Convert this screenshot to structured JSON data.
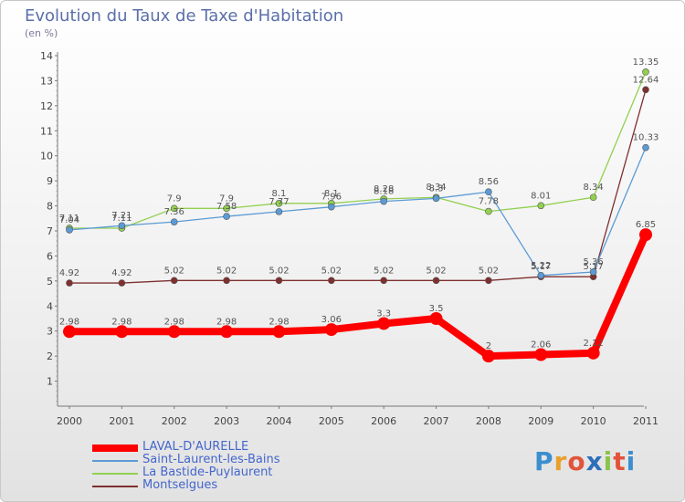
{
  "title": "Evolution du Taux de Taxe d'Habitation",
  "unit": "(en %)",
  "brand": {
    "text": "Proxiti",
    "letter_colors": [
      "#3b8fd0",
      "#e8a02c",
      "#e2543a",
      "#2d6fb8",
      "#8bc34a",
      "#e2543a",
      "#3b8fd0"
    ]
  },
  "chart_data": {
    "type": "line",
    "x": [
      "2000",
      "2001",
      "2002",
      "2003",
      "2004",
      "2005",
      "2006",
      "2007",
      "2008",
      "2009",
      "2010",
      "2011"
    ],
    "ylim": [
      0,
      14
    ],
    "yticks": [
      1,
      2,
      3,
      4,
      5,
      6,
      7,
      8,
      9,
      10,
      11,
      12,
      13,
      14
    ],
    "grid": false,
    "legend": "bottom-left",
    "series": [
      {
        "name": "LAVAL-D'AURELLE",
        "color": "#ff0000",
        "values": [
          2.98,
          2.98,
          2.98,
          2.98,
          2.98,
          3.06,
          3.3,
          3.5,
          2,
          2.06,
          2.12,
          6.85
        ],
        "labels": [
          "2.98",
          "2.98",
          "2.98",
          "2.98",
          "2.98",
          "3.06",
          "3.3",
          "3.5",
          "2",
          "2.06",
          "2.12",
          "6.85"
        ]
      },
      {
        "name": "Saint-Laurent-les-Bains",
        "color": "#5b9bd5",
        "values": [
          7.04,
          7.21,
          7.36,
          7.58,
          7.77,
          7.96,
          8.18,
          8.3,
          8.56,
          5.22,
          5.36,
          10.33
        ],
        "labels": [
          "7.04",
          "7.21",
          "7.36",
          "7.58",
          "7.77",
          "7.96",
          "8.18",
          "8.3",
          "8.56",
          "5.22",
          "5.36",
          "10.33"
        ]
      },
      {
        "name": "La Bastide-Puylaurent",
        "color": "#92d050",
        "values": [
          7.11,
          7.11,
          7.9,
          7.9,
          8.1,
          8.1,
          8.28,
          8.34,
          7.78,
          8.01,
          8.34,
          13.35
        ],
        "labels": [
          "7.11",
          "7.11",
          "7.9",
          "7.9",
          "8.1",
          "8.1",
          "8.28",
          "8.34",
          "7.78",
          "8.01",
          "8.34",
          "13.35"
        ]
      },
      {
        "name": "Montselgues",
        "color": "#7f2f2f",
        "values": [
          4.92,
          4.92,
          5.02,
          5.02,
          5.02,
          5.02,
          5.02,
          5.02,
          5.02,
          5.17,
          5.17,
          12.64
        ],
        "labels": [
          "4.92",
          "4.92",
          "5.02",
          "5.02",
          "5.02",
          "5.02",
          "5.02",
          "5.02",
          "5.02",
          "5.17",
          "5.17",
          "12.64"
        ]
      }
    ]
  }
}
